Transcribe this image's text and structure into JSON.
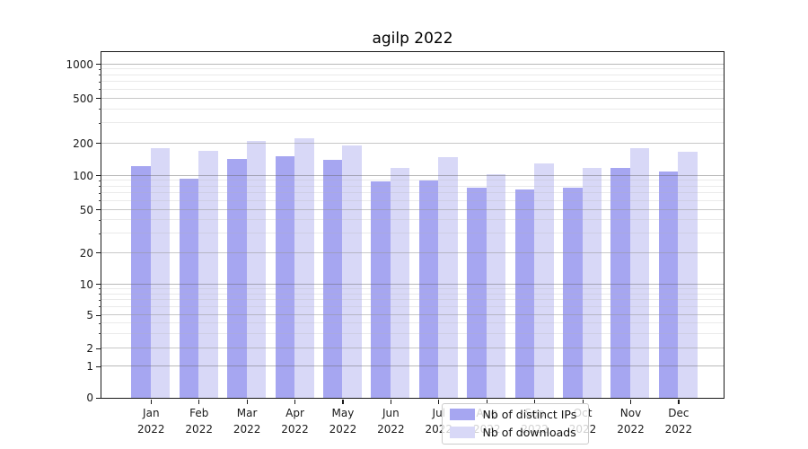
{
  "chart_data": {
    "type": "bar",
    "title": "agilp 2022",
    "categories": [
      "Jan 2022",
      "Feb 2022",
      "Mar 2022",
      "Apr 2022",
      "May 2022",
      "Jun 2022",
      "Jul 2022",
      "Aug 2022",
      "Sep 2022",
      "Oct 2022",
      "Nov 2022",
      "Dec 2022"
    ],
    "series": [
      {
        "name": "Nb of distinct IPs",
        "color": "#a6a6f1",
        "values": [
          121,
          93,
          142,
          151,
          140,
          89,
          90,
          78,
          75,
          78,
          117,
          109
        ]
      },
      {
        "name": "Nb of downloads",
        "color": "#d8d8f7",
        "values": [
          180,
          170,
          209,
          220,
          190,
          117,
          147,
          103,
          128,
          118,
          180,
          166
        ]
      }
    ],
    "yscale": "symlog",
    "y_ticks": [
      0,
      1,
      2,
      5,
      10,
      20,
      50,
      100,
      200,
      500,
      1000
    ],
    "ylim": [
      0,
      1000
    ],
    "grid": true,
    "legend_position": "lower-center"
  },
  "colors": {
    "grid_major": "rgba(100,100,100,0.45)",
    "grid_mid": "rgba(150,150,150,0.30)",
    "grid_minor": "rgba(180,180,180,0.28)",
    "axis": "#1a1a1a",
    "legend_border": "#cccccc"
  }
}
